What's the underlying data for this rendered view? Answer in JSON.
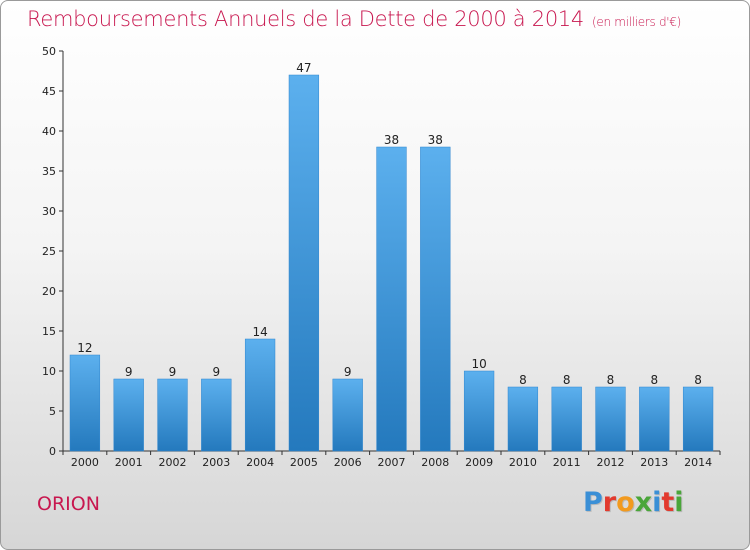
{
  "header": {
    "title": "Remboursements Annuels de la Dette de 2000 à 2014",
    "subtitle": "(en milliers d'€)"
  },
  "footer": {
    "commune": "ORION",
    "logo_text": "Proxiti",
    "logo_colors": [
      "#3a8fd6",
      "#e23a2e",
      "#f29a1e",
      "#4aa63a",
      "#3a8fd6",
      "#e23a2e",
      "#4aa63a"
    ]
  },
  "chart_data": {
    "type": "bar",
    "categories": [
      "2000",
      "2001",
      "2002",
      "2003",
      "2004",
      "2005",
      "2006",
      "2007",
      "2008",
      "2009",
      "2010",
      "2011",
      "2012",
      "2013",
      "2014"
    ],
    "values": [
      12,
      9,
      9,
      9,
      14,
      47,
      9,
      38,
      38,
      10,
      8,
      8,
      8,
      8,
      8
    ],
    "ylim": [
      0,
      50
    ],
    "yticks": [
      0,
      5,
      10,
      15,
      20,
      25,
      30,
      35,
      40,
      45,
      50
    ],
    "grid": false,
    "bar_color": "#3b95de",
    "title": "Remboursements Annuels de la Dette de 2000 à 2014",
    "xlabel": "",
    "ylabel": ""
  }
}
